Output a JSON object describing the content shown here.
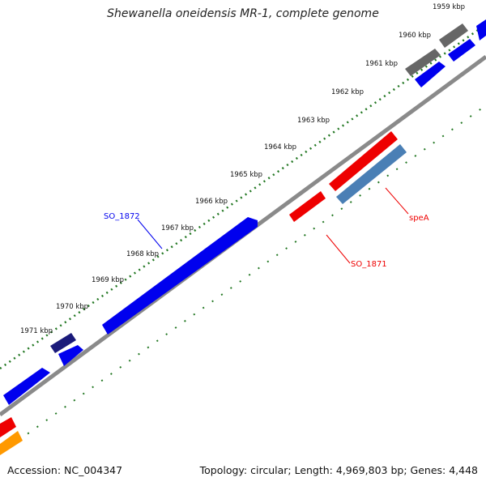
{
  "header": {
    "title": "Shewanella oneidensis MR-1, complete genome"
  },
  "footer": {
    "accession": "Accession: NC_004347",
    "summary": "Topology: circular; Length: 4,969,803 bp; Genes: 4,448"
  },
  "ticks": [
    "1959 kbp",
    "1960 kbp",
    "1961 kbp",
    "1962 kbp",
    "1963 kbp",
    "1964 kbp",
    "1965 kbp",
    "1966 kbp",
    "1967 kbp",
    "1968 kbp",
    "1969 kbp",
    "1970 kbp",
    "1971 kbp"
  ],
  "gene_labels": {
    "so1872": "SO_1872",
    "spea": "speA",
    "so1871": "SO_1871"
  },
  "colors": {
    "blue": "#0000ee",
    "red": "#ee0000",
    "gray": "#666666",
    "steelblue": "#4a7fb5",
    "navy": "#1a1a7a",
    "orange": "#ff9900",
    "backbone": "#888888",
    "tick": "#227722"
  }
}
